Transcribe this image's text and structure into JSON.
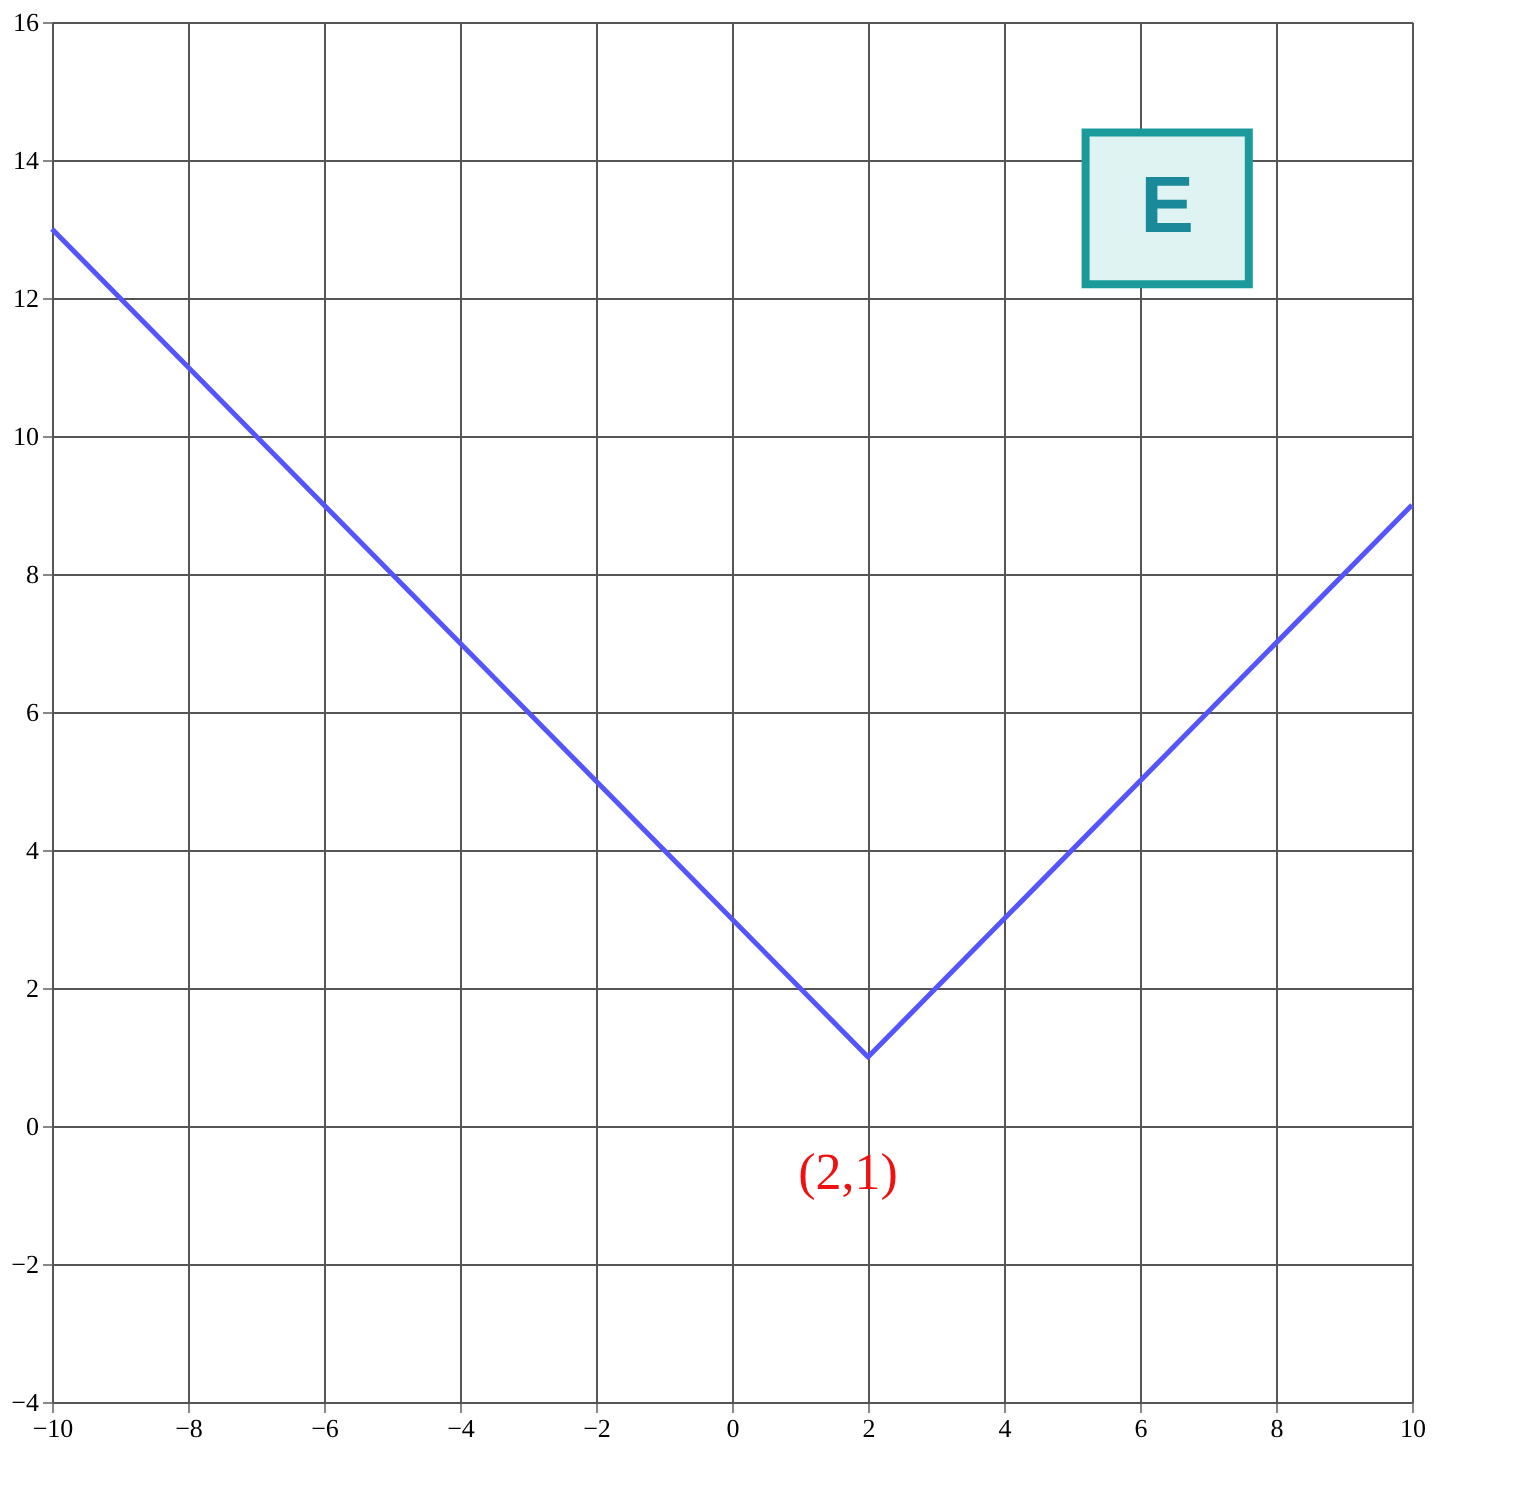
{
  "chart_data": {
    "type": "line",
    "x": [
      -10,
      2,
      10
    ],
    "series": [
      {
        "color": "#5555ff",
        "values": [
          13,
          1,
          9
        ]
      }
    ],
    "xlim": [
      -10,
      10
    ],
    "xticks": [
      -10,
      -8,
      -6,
      -4,
      -2,
      0,
      2,
      4,
      6,
      8,
      10
    ],
    "ylim": [
      -4,
      16
    ],
    "yticks": [
      -4,
      -2,
      0,
      2,
      4,
      6,
      8,
      10,
      12,
      14,
      16
    ],
    "grid": true,
    "marker": "none",
    "line_style": "solid",
    "annotations": [
      {
        "text": "(2,1)",
        "x": 2,
        "y": 1
      },
      "E"
    ]
  }
}
